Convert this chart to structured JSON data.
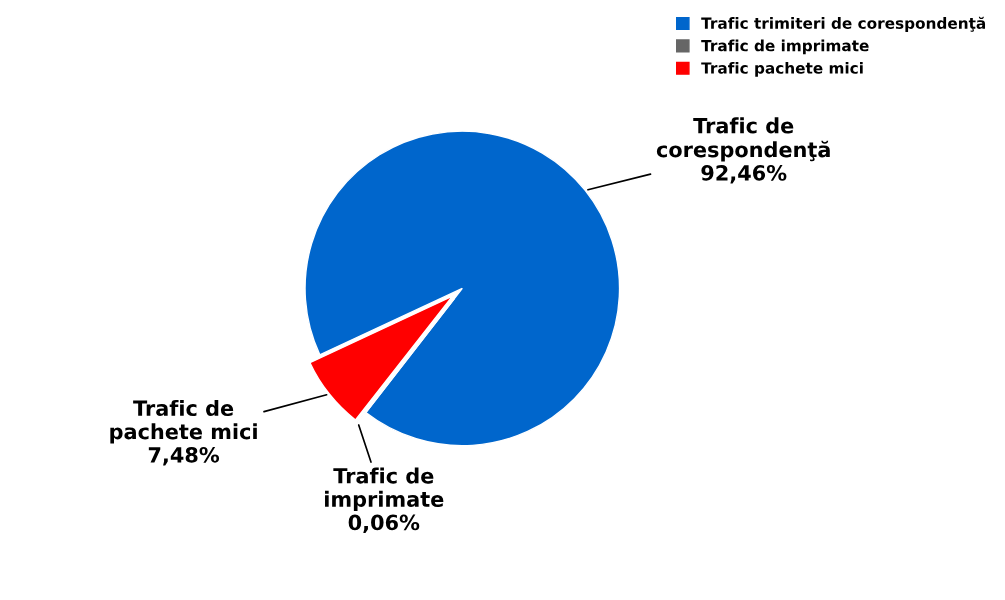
{
  "chart_data": {
    "type": "pie",
    "categories": [
      "Trafic trimiteri de corespondenţă",
      "Trafic de imprimate",
      "Trafic pachete mici"
    ],
    "values": [
      92.46,
      0.06,
      7.48
    ],
    "colors": [
      "#0066cc",
      "#666666",
      "#ff0000"
    ],
    "value_labels": [
      "Trafic de\ncorespondenţă\n92,46%",
      "Trafic de\nimprimate\n0,06%",
      "Trafic de\npachete mici\n7,48%"
    ],
    "legend": "top right"
  }
}
